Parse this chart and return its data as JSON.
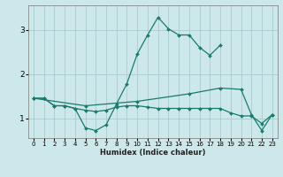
{
  "xlabel": "Humidex (Indice chaleur)",
  "background_color": "#cce8ea",
  "grid_color": "#aaccce",
  "line_color": "#1a7a6e",
  "ylim": [
    0.55,
    3.55
  ],
  "xlim": [
    -0.5,
    23.5
  ],
  "yticks": [
    1,
    2,
    3
  ],
  "xticks": [
    0,
    1,
    2,
    3,
    4,
    5,
    6,
    7,
    8,
    9,
    10,
    11,
    12,
    13,
    14,
    15,
    16,
    17,
    18,
    19,
    20,
    21,
    22,
    23
  ],
  "line1_x": [
    0,
    1,
    2,
    3,
    4,
    5,
    6,
    7,
    8,
    9,
    10,
    11,
    12,
    13,
    14,
    15,
    16,
    17,
    18
  ],
  "line1_y": [
    1.45,
    1.45,
    1.28,
    1.28,
    1.22,
    0.78,
    0.72,
    0.85,
    1.32,
    1.78,
    2.45,
    2.88,
    3.28,
    3.02,
    2.88,
    2.88,
    2.6,
    2.42,
    2.65
  ],
  "line2_x": [
    0,
    1,
    2,
    3,
    4,
    5,
    6,
    7,
    8,
    9,
    10,
    11,
    12,
    13,
    14,
    15,
    16,
    17,
    18,
    19,
    20,
    21,
    22,
    23
  ],
  "line2_y": [
    1.45,
    1.45,
    1.28,
    1.28,
    1.22,
    1.18,
    1.15,
    1.18,
    1.25,
    1.28,
    1.28,
    1.25,
    1.22,
    1.22,
    1.22,
    1.22,
    1.22,
    1.22,
    1.22,
    1.12,
    1.05,
    1.05,
    0.88,
    1.08
  ],
  "line3_x": [
    0,
    5,
    10,
    15,
    18,
    20,
    21,
    22,
    23
  ],
  "line3_y": [
    1.45,
    1.28,
    1.38,
    1.55,
    1.68,
    1.65,
    1.08,
    0.72,
    1.08
  ]
}
